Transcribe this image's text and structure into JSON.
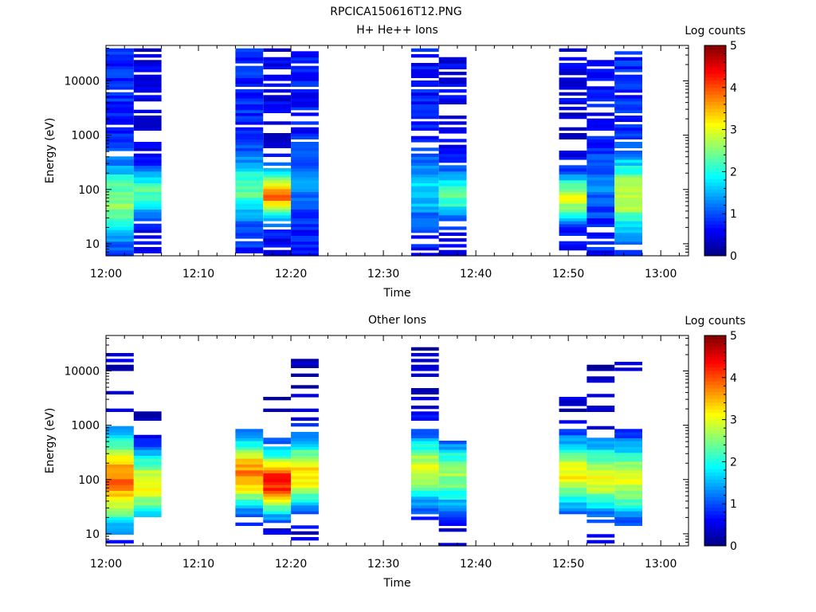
{
  "figure_title": "RPCICA150616T12.PNG",
  "colormap_stops": [
    "#00007f",
    "#0000ff",
    "#007fff",
    "#00ffff",
    "#7fff7f",
    "#ffff00",
    "#ff7f00",
    "#ff0000",
    "#7f0000"
  ],
  "chart_data": [
    {
      "type": "heatmap",
      "title": "H+ He++ Ions",
      "xlabel": "Time",
      "ylabel": "Energy (eV)",
      "y_scale": "log",
      "ylim": [
        6,
        45000
      ],
      "xlim": [
        "12:00",
        "13:03"
      ],
      "x_ticks": [
        "12:00",
        "12:10",
        "12:20",
        "12:30",
        "12:40",
        "12:50",
        "13:00"
      ],
      "y_ticks": [
        "10",
        "100",
        "1000",
        "10000"
      ],
      "colorbar": {
        "label": "Log counts",
        "range": [
          0,
          5
        ],
        "ticks": [
          "0",
          "1",
          "2",
          "3",
          "4",
          "5"
        ]
      },
      "columns": [
        {
          "start": "12:00",
          "end": "12:03",
          "peak_energy_ev": 60,
          "peak_log_counts": 2.6,
          "width_decades": 0.45,
          "background_log_counts": 0.8,
          "coverage": 0.85,
          "energy_min_ev": 6,
          "energy_max_ev": 40000
        },
        {
          "start": "12:03",
          "end": "12:06",
          "peak_energy_ev": 90,
          "peak_log_counts": 2.3,
          "width_decades": 0.3,
          "background_log_counts": 0.5,
          "coverage": 0.6,
          "energy_min_ev": 6,
          "energy_max_ev": 40000
        },
        {
          "start": "12:14",
          "end": "12:17",
          "peak_energy_ev": 110,
          "peak_log_counts": 2.4,
          "width_decades": 0.35,
          "background_log_counts": 0.8,
          "coverage": 0.85,
          "energy_min_ev": 6,
          "energy_max_ev": 40000
        },
        {
          "start": "12:17",
          "end": "12:20",
          "peak_energy_ev": 80,
          "peak_log_counts": 3.8,
          "width_decades": 0.3,
          "background_log_counts": 0.5,
          "coverage": 0.6,
          "energy_min_ev": 6,
          "energy_max_ev": 40000
        },
        {
          "start": "12:20",
          "end": "12:23",
          "peak_energy_ev": 150,
          "peak_log_counts": 1.3,
          "width_decades": 0.4,
          "background_log_counts": 0.7,
          "coverage": 0.75,
          "energy_min_ev": 6,
          "energy_max_ev": 40000
        },
        {
          "start": "12:33",
          "end": "12:36",
          "peak_energy_ev": 100,
          "peak_log_counts": 1.7,
          "width_decades": 0.4,
          "background_log_counts": 0.7,
          "coverage": 0.75,
          "energy_min_ev": 6,
          "energy_max_ev": 40000
        },
        {
          "start": "12:36",
          "end": "12:39",
          "peak_energy_ev": 80,
          "peak_log_counts": 2.3,
          "width_decades": 0.3,
          "background_log_counts": 0.5,
          "coverage": 0.6,
          "energy_min_ev": 6,
          "energy_max_ev": 35000
        },
        {
          "start": "12:49",
          "end": "12:52",
          "peak_energy_ev": 70,
          "peak_log_counts": 2.9,
          "width_decades": 0.3,
          "background_log_counts": 0.5,
          "coverage": 0.6,
          "energy_min_ev": 6,
          "energy_max_ev": 40000
        },
        {
          "start": "12:52",
          "end": "12:55",
          "peak_energy_ev": 120,
          "peak_log_counts": 1.2,
          "width_decades": 0.4,
          "background_log_counts": 0.7,
          "coverage": 0.75,
          "energy_min_ev": 6,
          "energy_max_ev": 40000
        },
        {
          "start": "12:55",
          "end": "12:58",
          "peak_energy_ev": 80,
          "peak_log_counts": 2.9,
          "width_decades": 0.45,
          "background_log_counts": 0.8,
          "coverage": 0.75,
          "energy_min_ev": 6,
          "energy_max_ev": 35000
        }
      ]
    },
    {
      "type": "heatmap",
      "title": "Other Ions",
      "xlabel": "Time",
      "ylabel": "Energy (eV)",
      "y_scale": "log",
      "ylim": [
        6,
        45000
      ],
      "xlim": [
        "12:00",
        "13:03"
      ],
      "x_ticks": [
        "12:00",
        "12:10",
        "12:20",
        "12:30",
        "12:40",
        "12:50",
        "13:00"
      ],
      "y_ticks": [
        "10",
        "100",
        "1000",
        "10000"
      ],
      "colorbar": {
        "label": "Log counts",
        "range": [
          0,
          5
        ],
        "ticks": [
          "0",
          "1",
          "2",
          "3",
          "4",
          "5"
        ]
      },
      "columns": [
        {
          "start": "12:00",
          "end": "12:03",
          "peak_energy_ev": 100,
          "peak_log_counts": 3.8,
          "width_decades": 0.6,
          "background_log_counts": 0.3,
          "coverage": 0.25,
          "energy_min_ev": 6,
          "energy_max_ev": 28000
        },
        {
          "start": "12:03",
          "end": "12:06",
          "peak_energy_ev": 80,
          "peak_log_counts": 3.1,
          "width_decades": 0.45,
          "background_log_counts": 0.3,
          "coverage": 0.25,
          "energy_min_ev": 20,
          "energy_max_ev": 3000
        },
        {
          "start": "12:14",
          "end": "12:17",
          "peak_energy_ev": 130,
          "peak_log_counts": 3.7,
          "width_decades": 0.45,
          "background_log_counts": 0.3,
          "coverage": 0.25,
          "energy_min_ev": 6,
          "energy_max_ev": 1100
        },
        {
          "start": "12:17",
          "end": "12:20",
          "peak_energy_ev": 90,
          "peak_log_counts": 4.3,
          "width_decades": 0.4,
          "background_log_counts": 0.3,
          "coverage": 0.25,
          "energy_min_ev": 10,
          "energy_max_ev": 12000
        },
        {
          "start": "12:20",
          "end": "12:23",
          "peak_energy_ev": 130,
          "peak_log_counts": 3.3,
          "width_decades": 0.45,
          "background_log_counts": 0.3,
          "coverage": 0.25,
          "energy_min_ev": 6,
          "energy_max_ev": 20000
        },
        {
          "start": "12:33",
          "end": "12:36",
          "peak_energy_ev": 150,
          "peak_log_counts": 3.0,
          "width_decades": 0.45,
          "background_log_counts": 0.3,
          "coverage": 0.25,
          "energy_min_ev": 6,
          "energy_max_ev": 27000
        },
        {
          "start": "12:36",
          "end": "12:39",
          "peak_energy_ev": 120,
          "peak_log_counts": 2.6,
          "width_decades": 0.45,
          "background_log_counts": 0.3,
          "coverage": 0.25,
          "energy_min_ev": 6,
          "energy_max_ev": 500
        },
        {
          "start": "12:49",
          "end": "12:52",
          "peak_energy_ev": 130,
          "peak_log_counts": 3.1,
          "width_decades": 0.45,
          "background_log_counts": 0.3,
          "coverage": 0.25,
          "energy_min_ev": 20,
          "energy_max_ev": 4500
        },
        {
          "start": "12:52",
          "end": "12:55",
          "peak_energy_ev": 110,
          "peak_log_counts": 3.0,
          "width_decades": 0.45,
          "background_log_counts": 0.3,
          "coverage": 0.25,
          "energy_min_ev": 6,
          "energy_max_ev": 35000
        },
        {
          "start": "12:55",
          "end": "12:58",
          "peak_energy_ev": 100,
          "peak_log_counts": 2.9,
          "width_decades": 0.5,
          "background_log_counts": 0.3,
          "coverage": 0.25,
          "energy_min_ev": 15,
          "energy_max_ev": 25000
        }
      ]
    }
  ]
}
